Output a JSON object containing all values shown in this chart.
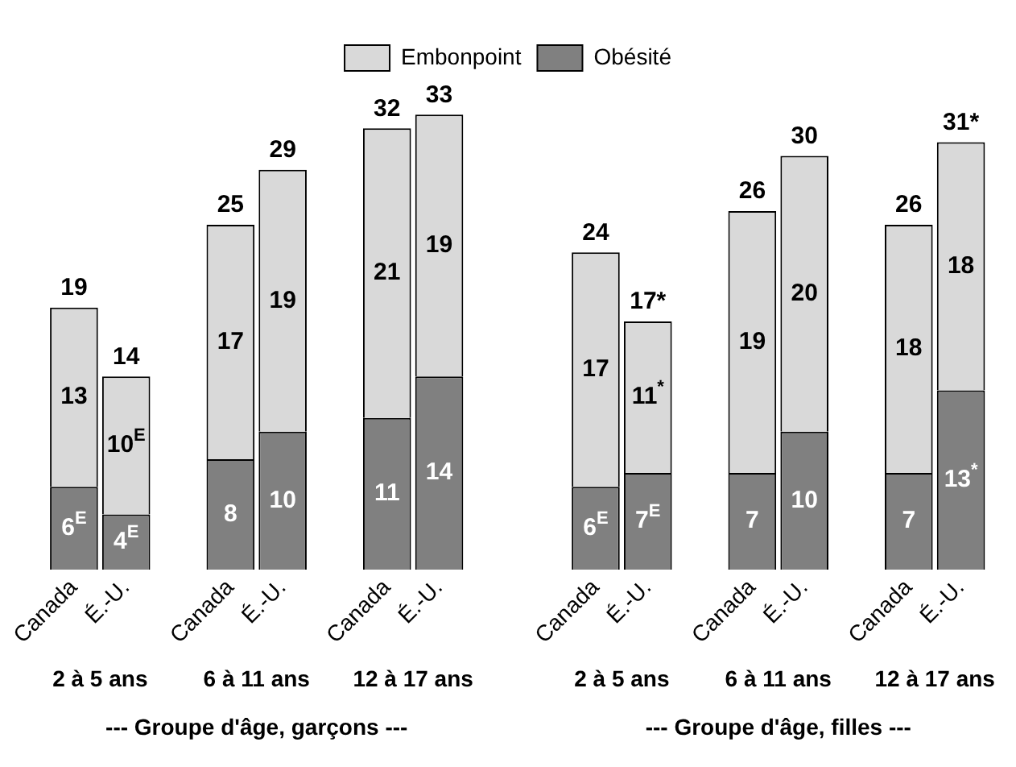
{
  "chart_data": {
    "type": "bar",
    "stacked": true,
    "legend": "top",
    "tick_labels": "x",
    "grid": false,
    "categories": [
      "Canada",
      "É.-U.",
      null,
      "Canada",
      "É.-U.",
      null,
      "Canada",
      "É.-U.",
      null,
      null,
      "Canada",
      "É.-U.",
      null,
      "Canada",
      "É.-U.",
      null,
      "Canada",
      "É.-U."
    ],
    "series": [
      {
        "name": "Obésité",
        "color": "#808080",
        "values": [
          6,
          4,
          null,
          8,
          10,
          null,
          11,
          14,
          null,
          null,
          6,
          7,
          null,
          7,
          10,
          null,
          7,
          13
        ],
        "value_labels": [
          "6$^{E}$",
          "4$^{E}$",
          null,
          "8",
          "10",
          null,
          "11",
          "14",
          null,
          null,
          "6$^{E}$",
          "7$^{E}$",
          null,
          "7",
          "10",
          null,
          "7",
          "13$^{*}$"
        ]
      },
      {
        "name": "Embonpoint",
        "color": "#d9d9d9",
        "values": [
          13,
          10,
          null,
          17,
          19,
          null,
          21,
          19,
          null,
          null,
          17,
          11,
          null,
          19,
          20,
          null,
          18,
          18
        ],
        "value_labels": [
          "13",
          "10$^{E}$",
          null,
          "17",
          "19",
          null,
          "21",
          "19",
          null,
          null,
          "17",
          "11$^{*}$",
          null,
          "19",
          "20",
          null,
          "18",
          "18"
        ]
      }
    ],
    "totals": [
      "19",
      "14",
      null,
      "25",
      "29",
      null,
      "32",
      "33",
      null,
      null,
      "24",
      "17*",
      null,
      "26",
      "30",
      null,
      "26",
      "31*"
    ],
    "annotations": [
      "2 à 5 ans",
      "6 à 11 ans",
      "12 à 17 ans",
      "2 à 5 ans",
      "6 à 11 ans",
      "12 à 17 ans",
      "--- Groupe d'âge, garçons ---",
      "--- Groupe d'âge, filles ---"
    ]
  }
}
